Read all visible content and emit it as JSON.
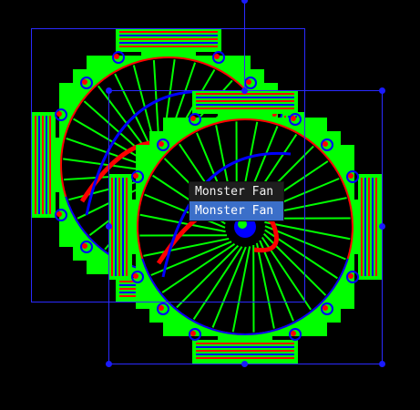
{
  "colors": {
    "background": "#000000",
    "sprite_fill": "#00ff00",
    "stripe_red": "#ff0000",
    "stripe_blue": "#0000ff",
    "hub_blue": "#0000ff",
    "selection": "#2a2aff",
    "menu_bg": "#1e1e1e",
    "menu_highlight": "#3b6fc9"
  },
  "sprites": [
    {
      "name": "Monster Fan",
      "spoke_count": 32,
      "selected": false
    },
    {
      "name": "Monster Fan",
      "spoke_count": 32,
      "selected": true
    }
  ],
  "context_menu": {
    "items": [
      {
        "label": "Monster Fan",
        "highlighted": false
      },
      {
        "label": "Monster Fan",
        "highlighted": true
      }
    ]
  },
  "icons": [
    "sprite-icon",
    "resize-handle-icon"
  ]
}
